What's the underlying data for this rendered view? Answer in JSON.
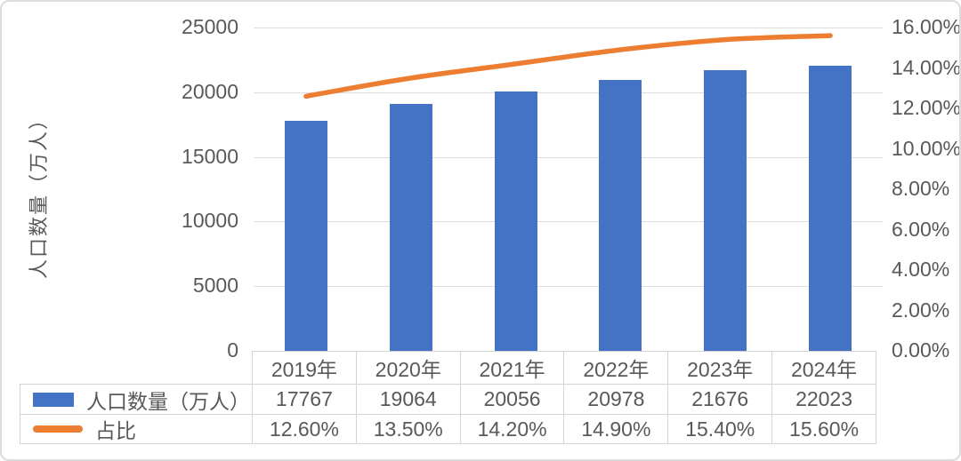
{
  "colors": {
    "bar": "#4472C4",
    "line": "#ED7D31",
    "grid": "#dedede",
    "text": "#595959",
    "table_border": "#d4d4d4"
  },
  "chart_data": {
    "type": "bar",
    "secondary_type": "line",
    "title": "",
    "ylabel": "人口数量（万人）",
    "categories": [
      "2019年",
      "2020年",
      "2021年",
      "2022年",
      "2023年",
      "2024年"
    ],
    "series": [
      {
        "name": "人口数量（万人）",
        "type": "bar",
        "axis": "left",
        "values": [
          17767,
          19064,
          20056,
          20978,
          21676,
          22023
        ],
        "value_labels": [
          "17767",
          "19064",
          "20056",
          "20978",
          "21676",
          "22023"
        ]
      },
      {
        "name": "占比",
        "type": "line",
        "axis": "right",
        "values": [
          12.6,
          13.5,
          14.2,
          14.9,
          15.4,
          15.6
        ],
        "value_labels": [
          "12.60%",
          "13.50%",
          "14.20%",
          "14.90%",
          "15.40%",
          "15.60%"
        ]
      }
    ],
    "ylim": [
      0,
      25000
    ],
    "y_tick_labels": [
      "0",
      "5000",
      "10000",
      "15000",
      "20000",
      "25000"
    ],
    "y2lim": [
      0,
      16
    ],
    "y2_tick_labels": [
      "0.00%",
      "2.00%",
      "4.00%",
      "6.00%",
      "8.00%",
      "10.00%",
      "12.00%",
      "14.00%",
      "16.00%"
    ],
    "grid": true,
    "legend_position": "table-left"
  }
}
